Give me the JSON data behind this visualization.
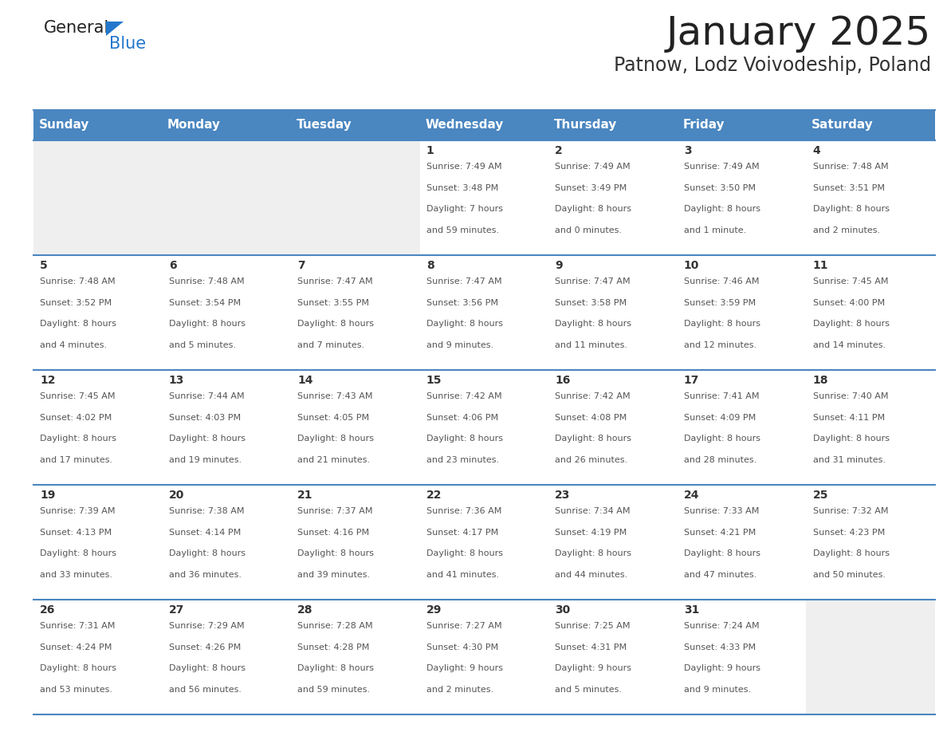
{
  "title": "January 2025",
  "subtitle": "Patnow, Lodz Voivodeship, Poland",
  "header_bg": "#4a86c0",
  "header_text_color": "#ffffff",
  "cell_bg_white": "#ffffff",
  "cell_bg_light": "#efefef",
  "grid_line_color": "#4a86c0",
  "day_number_color": "#333333",
  "cell_text_color": "#555555",
  "days_of_week": [
    "Sunday",
    "Monday",
    "Tuesday",
    "Wednesday",
    "Thursday",
    "Friday",
    "Saturday"
  ],
  "weeks": [
    [
      {
        "day": "",
        "sunrise": "",
        "sunset": "",
        "daylight": ""
      },
      {
        "day": "",
        "sunrise": "",
        "sunset": "",
        "daylight": ""
      },
      {
        "day": "",
        "sunrise": "",
        "sunset": "",
        "daylight": ""
      },
      {
        "day": "1",
        "sunrise": "7:49 AM",
        "sunset": "3:48 PM",
        "daylight": "7 hours and 59 minutes."
      },
      {
        "day": "2",
        "sunrise": "7:49 AM",
        "sunset": "3:49 PM",
        "daylight": "8 hours and 0 minutes."
      },
      {
        "day": "3",
        "sunrise": "7:49 AM",
        "sunset": "3:50 PM",
        "daylight": "8 hours and 1 minute."
      },
      {
        "day": "4",
        "sunrise": "7:48 AM",
        "sunset": "3:51 PM",
        "daylight": "8 hours and 2 minutes."
      }
    ],
    [
      {
        "day": "5",
        "sunrise": "7:48 AM",
        "sunset": "3:52 PM",
        "daylight": "8 hours and 4 minutes."
      },
      {
        "day": "6",
        "sunrise": "7:48 AM",
        "sunset": "3:54 PM",
        "daylight": "8 hours and 5 minutes."
      },
      {
        "day": "7",
        "sunrise": "7:47 AM",
        "sunset": "3:55 PM",
        "daylight": "8 hours and 7 minutes."
      },
      {
        "day": "8",
        "sunrise": "7:47 AM",
        "sunset": "3:56 PM",
        "daylight": "8 hours and 9 minutes."
      },
      {
        "day": "9",
        "sunrise": "7:47 AM",
        "sunset": "3:58 PM",
        "daylight": "8 hours and 11 minutes."
      },
      {
        "day": "10",
        "sunrise": "7:46 AM",
        "sunset": "3:59 PM",
        "daylight": "8 hours and 12 minutes."
      },
      {
        "day": "11",
        "sunrise": "7:45 AM",
        "sunset": "4:00 PM",
        "daylight": "8 hours and 14 minutes."
      }
    ],
    [
      {
        "day": "12",
        "sunrise": "7:45 AM",
        "sunset": "4:02 PM",
        "daylight": "8 hours and 17 minutes."
      },
      {
        "day": "13",
        "sunrise": "7:44 AM",
        "sunset": "4:03 PM",
        "daylight": "8 hours and 19 minutes."
      },
      {
        "day": "14",
        "sunrise": "7:43 AM",
        "sunset": "4:05 PM",
        "daylight": "8 hours and 21 minutes."
      },
      {
        "day": "15",
        "sunrise": "7:42 AM",
        "sunset": "4:06 PM",
        "daylight": "8 hours and 23 minutes."
      },
      {
        "day": "16",
        "sunrise": "7:42 AM",
        "sunset": "4:08 PM",
        "daylight": "8 hours and 26 minutes."
      },
      {
        "day": "17",
        "sunrise": "7:41 AM",
        "sunset": "4:09 PM",
        "daylight": "8 hours and 28 minutes."
      },
      {
        "day": "18",
        "sunrise": "7:40 AM",
        "sunset": "4:11 PM",
        "daylight": "8 hours and 31 minutes."
      }
    ],
    [
      {
        "day": "19",
        "sunrise": "7:39 AM",
        "sunset": "4:13 PM",
        "daylight": "8 hours and 33 minutes."
      },
      {
        "day": "20",
        "sunrise": "7:38 AM",
        "sunset": "4:14 PM",
        "daylight": "8 hours and 36 minutes."
      },
      {
        "day": "21",
        "sunrise": "7:37 AM",
        "sunset": "4:16 PM",
        "daylight": "8 hours and 39 minutes."
      },
      {
        "day": "22",
        "sunrise": "7:36 AM",
        "sunset": "4:17 PM",
        "daylight": "8 hours and 41 minutes."
      },
      {
        "day": "23",
        "sunrise": "7:34 AM",
        "sunset": "4:19 PM",
        "daylight": "8 hours and 44 minutes."
      },
      {
        "day": "24",
        "sunrise": "7:33 AM",
        "sunset": "4:21 PM",
        "daylight": "8 hours and 47 minutes."
      },
      {
        "day": "25",
        "sunrise": "7:32 AM",
        "sunset": "4:23 PM",
        "daylight": "8 hours and 50 minutes."
      }
    ],
    [
      {
        "day": "26",
        "sunrise": "7:31 AM",
        "sunset": "4:24 PM",
        "daylight": "8 hours and 53 minutes."
      },
      {
        "day": "27",
        "sunrise": "7:29 AM",
        "sunset": "4:26 PM",
        "daylight": "8 hours and 56 minutes."
      },
      {
        "day": "28",
        "sunrise": "7:28 AM",
        "sunset": "4:28 PM",
        "daylight": "8 hours and 59 minutes."
      },
      {
        "day": "29",
        "sunrise": "7:27 AM",
        "sunset": "4:30 PM",
        "daylight": "9 hours and 2 minutes."
      },
      {
        "day": "30",
        "sunrise": "7:25 AM",
        "sunset": "4:31 PM",
        "daylight": "9 hours and 5 minutes."
      },
      {
        "day": "31",
        "sunrise": "7:24 AM",
        "sunset": "4:33 PM",
        "daylight": "9 hours and 9 minutes."
      },
      {
        "day": "",
        "sunrise": "",
        "sunset": "",
        "daylight": ""
      }
    ]
  ],
  "logo_general_color": "#222222",
  "logo_blue_color": "#2277cc",
  "logo_triangle_color": "#2277cc",
  "title_fontsize": 36,
  "subtitle_fontsize": 17,
  "header_fontsize": 11,
  "day_num_fontsize": 10,
  "cell_text_fontsize": 8
}
